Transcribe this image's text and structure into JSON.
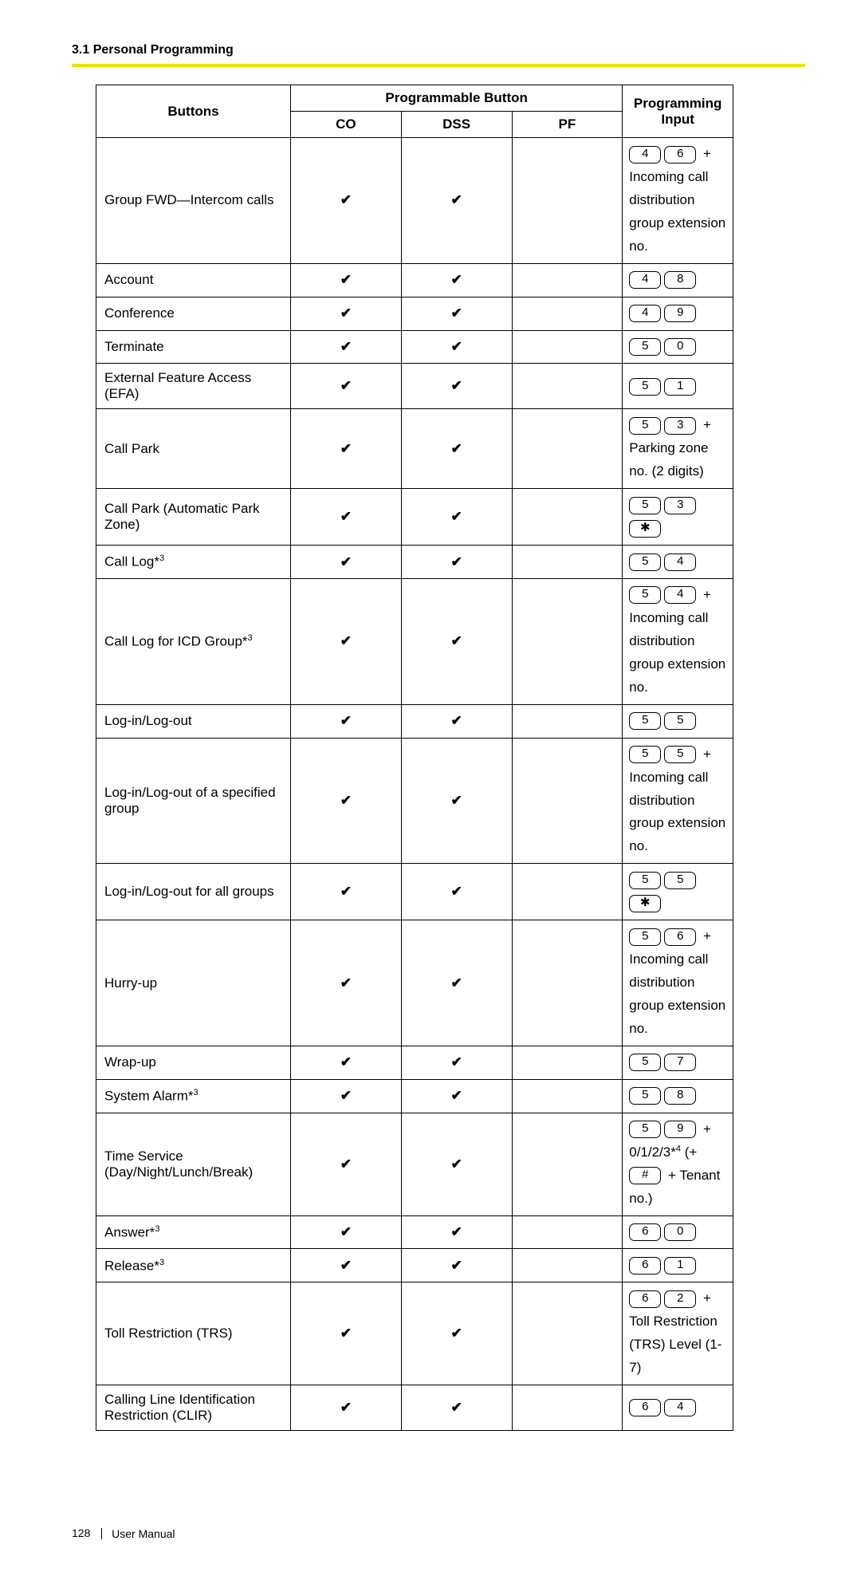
{
  "section_heading": "3.1 Personal Programming",
  "rule_color": "#e6e600",
  "table": {
    "header": {
      "buttons": "Buttons",
      "progbtn": "Programmable Button",
      "co": "CO",
      "dss": "DSS",
      "pf": "PF",
      "input": "Programming Input"
    },
    "rows": [
      {
        "label_html": "Group FWD—Intercom calls",
        "co": true,
        "dss": true,
        "pf": false,
        "input": [
          {
            "k": "4"
          },
          {
            "k": "6"
          },
          {
            "t": " + Incoming call distribution group extension no."
          }
        ]
      },
      {
        "label_html": "Account",
        "co": true,
        "dss": true,
        "pf": false,
        "input": [
          {
            "k": "4"
          },
          {
            "k": "8"
          }
        ]
      },
      {
        "label_html": "Conference",
        "co": true,
        "dss": true,
        "pf": false,
        "input": [
          {
            "k": "4"
          },
          {
            "k": "9"
          }
        ]
      },
      {
        "label_html": "Terminate",
        "co": true,
        "dss": true,
        "pf": false,
        "input": [
          {
            "k": "5"
          },
          {
            "k": "0"
          }
        ]
      },
      {
        "label_html": "External Feature Access (EFA)",
        "co": true,
        "dss": true,
        "pf": false,
        "input": [
          {
            "k": "5"
          },
          {
            "k": "1"
          }
        ]
      },
      {
        "label_html": "Call Park",
        "co": true,
        "dss": true,
        "pf": false,
        "input": [
          {
            "k": "5"
          },
          {
            "k": "3"
          },
          {
            "t": " + Parking zone no. (2 digits)"
          }
        ]
      },
      {
        "label_html": "Call Park (Automatic Park Zone)",
        "co": true,
        "dss": true,
        "pf": false,
        "input": [
          {
            "k": "5"
          },
          {
            "k": "3"
          },
          {
            "k": "✱"
          }
        ]
      },
      {
        "label_html": "Call Log*<sup>3</sup>",
        "co": true,
        "dss": true,
        "pf": false,
        "input": [
          {
            "k": "5"
          },
          {
            "k": "4"
          }
        ]
      },
      {
        "label_html": "Call Log for ICD Group*<sup>3</sup>",
        "co": true,
        "dss": true,
        "pf": false,
        "input": [
          {
            "k": "5"
          },
          {
            "k": "4"
          },
          {
            "t": " + Incoming call distribution group extension no."
          }
        ]
      },
      {
        "label_html": "Log-in/Log-out",
        "co": true,
        "dss": true,
        "pf": false,
        "input": [
          {
            "k": "5"
          },
          {
            "k": "5"
          }
        ]
      },
      {
        "label_html": "Log-in/Log-out of a specified group",
        "co": true,
        "dss": true,
        "pf": false,
        "input": [
          {
            "k": "5"
          },
          {
            "k": "5"
          },
          {
            "t": " + Incoming call distribution group extension no."
          }
        ]
      },
      {
        "label_html": "Log-in/Log-out for all groups",
        "co": true,
        "dss": true,
        "pf": false,
        "input": [
          {
            "k": "5"
          },
          {
            "k": "5"
          },
          {
            "k": "✱"
          }
        ]
      },
      {
        "label_html": "Hurry-up",
        "co": true,
        "dss": true,
        "pf": false,
        "input": [
          {
            "k": "5"
          },
          {
            "k": "6"
          },
          {
            "t": " + Incoming call distribution group extension no."
          }
        ]
      },
      {
        "label_html": "Wrap-up",
        "co": true,
        "dss": true,
        "pf": false,
        "input": [
          {
            "k": "5"
          },
          {
            "k": "7"
          }
        ]
      },
      {
        "label_html": "System Alarm*<sup>3</sup>",
        "co": true,
        "dss": true,
        "pf": false,
        "input": [
          {
            "k": "5"
          },
          {
            "k": "8"
          }
        ]
      },
      {
        "label_html": "Time Service (Day/Night/Lunch/Break)",
        "co": true,
        "dss": true,
        "pf": false,
        "input": [
          {
            "k": "5"
          },
          {
            "k": "9"
          },
          {
            "t": " + 0/1/2/3*"
          },
          {
            "sup": "4"
          },
          {
            "t": " (+ "
          },
          {
            "k": "#"
          },
          {
            "t": " + Tenant no.)"
          }
        ]
      },
      {
        "label_html": "Answer*<sup>3</sup>",
        "co": true,
        "dss": true,
        "pf": false,
        "input": [
          {
            "k": "6"
          },
          {
            "k": "0"
          }
        ]
      },
      {
        "label_html": "Release*<sup>3</sup>",
        "co": true,
        "dss": true,
        "pf": false,
        "input": [
          {
            "k": "6"
          },
          {
            "k": "1"
          }
        ]
      },
      {
        "label_html": "Toll Restriction (TRS)",
        "co": true,
        "dss": true,
        "pf": false,
        "input": [
          {
            "k": "6"
          },
          {
            "k": "2"
          },
          {
            "t": " + Toll Restriction (TRS) Level (1-7)"
          }
        ]
      },
      {
        "label_html": "Calling Line Identification Restriction (CLIR)",
        "co": true,
        "dss": true,
        "pf": false,
        "input": [
          {
            "k": "6"
          },
          {
            "k": "4"
          }
        ]
      }
    ]
  },
  "footer": {
    "page_no": "128",
    "label": "User Manual"
  },
  "check_glyph": "✔"
}
